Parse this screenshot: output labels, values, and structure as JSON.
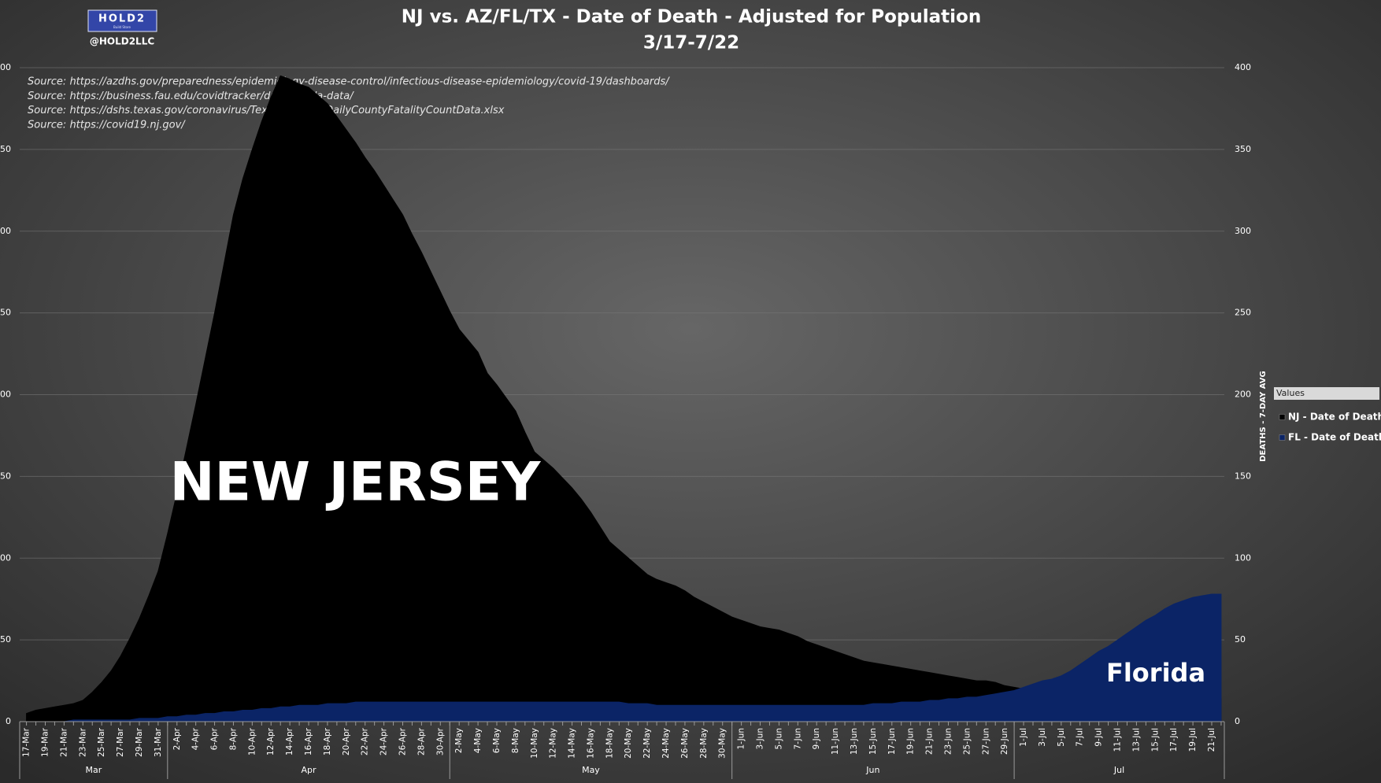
{
  "chart_data": {
    "type": "area",
    "title": "NJ vs. AZ/FL/TX - Date of Death - Adjusted for Population",
    "subtitle": "3/17-7/22",
    "logo": {
      "brand": "HOLD2",
      "tagline": "Build Store",
      "handle": "@HOLD2LLC"
    },
    "sources": [
      "Source: https://azdhs.gov/preparedness/epidemiology-disease-control/infectious-disease-epidemiology/covid-19/dashboards/",
      "Source: https://business.fau.edu/covidtracker/data/florida-data/",
      "Source: https://dshs.texas.gov/coronavirus/TexasCOVID19DailyCountyFatalityCountData.xlsx",
      "Source: https://covid19.nj.gov/"
    ],
    "annotations": [
      "NEW JERSEY",
      "Florida"
    ],
    "y_axis_label": "DEATHS - 7-DAY AVG",
    "legend_title": "Values",
    "legend_position": "right",
    "grid": true,
    "months": [
      "Mar",
      "Apr",
      "May",
      "Jun",
      "Jul"
    ],
    "categories": [
      "17-Mar",
      null,
      "19-Mar",
      null,
      "21-Mar",
      null,
      "23-Mar",
      null,
      "25-Mar",
      null,
      "27-Mar",
      null,
      "29-Mar",
      null,
      "31-Mar",
      null,
      "2-Apr",
      null,
      "4-Apr",
      null,
      "6-Apr",
      null,
      "8-Apr",
      null,
      "10-Apr",
      null,
      "12-Apr",
      null,
      "14-Apr",
      null,
      "16-Apr",
      null,
      "18-Apr",
      null,
      "20-Apr",
      null,
      "22-Apr",
      null,
      "24-Apr",
      null,
      "26-Apr",
      null,
      "28-Apr",
      null,
      "30-Apr",
      null,
      "2-May",
      null,
      "4-May",
      null,
      "6-May",
      null,
      "8-May",
      null,
      "10-May",
      null,
      "12-May",
      null,
      "14-May",
      null,
      "16-May",
      null,
      "18-May",
      null,
      "20-May",
      null,
      "22-May",
      null,
      "24-May",
      null,
      "26-May",
      null,
      "28-May",
      null,
      "30-May",
      null,
      "1-Jun",
      null,
      "3-Jun",
      null,
      "5-Jun",
      null,
      "7-Jun",
      null,
      "9-Jun",
      null,
      "11-Jun",
      null,
      "13-Jun",
      null,
      "15-Jun",
      null,
      "17-Jun",
      null,
      "19-Jun",
      null,
      "21-Jun",
      null,
      "23-Jun",
      null,
      "25-Jun",
      null,
      "27-Jun",
      null,
      "29-Jun",
      null,
      "1-Jul",
      null,
      "3-Jul",
      null,
      "5-Jul",
      null,
      "7-Jul",
      null,
      "9-Jul",
      null,
      "11-Jul",
      null,
      "13-Jul",
      null,
      "15-Jul",
      null,
      "17-Jul",
      null,
      "19-Jul",
      null,
      "21-Jul",
      null
    ],
    "series": [
      {
        "name": "NJ - Date of Death",
        "color": "#000000",
        "values": [
          5,
          7,
          8,
          9,
          10,
          11,
          13,
          18,
          24,
          31,
          40,
          51,
          63,
          77,
          92,
          115,
          140,
          167,
          194,
          222,
          250,
          280,
          310,
          332,
          350,
          367,
          382,
          395,
          393,
          390,
          388,
          383,
          378,
          370,
          362,
          354,
          345,
          337,
          328,
          319,
          310,
          298,
          287,
          275,
          263,
          251,
          240,
          233,
          226,
          213,
          206,
          198,
          190,
          177,
          165,
          160,
          155,
          149,
          143,
          136,
          128,
          119,
          110,
          105,
          100,
          95,
          90,
          87,
          85,
          83,
          80,
          76,
          73,
          70,
          67,
          64,
          62,
          60,
          58,
          57,
          56,
          54,
          52,
          49,
          47,
          45,
          43,
          41,
          39,
          37,
          36,
          35,
          34,
          33,
          32,
          31,
          30,
          29,
          28,
          27,
          26,
          25,
          25,
          24,
          22,
          21,
          20,
          19,
          19,
          18,
          18,
          17,
          17,
          17,
          17,
          16,
          16,
          16,
          16,
          15,
          15,
          15,
          15,
          15,
          15,
          14,
          14,
          14
        ]
      },
      {
        "name": "FL - Date of Death",
        "color": "#0b2466",
        "values": [
          0,
          0,
          0,
          0,
          0,
          1,
          1,
          1,
          1,
          1,
          1,
          1,
          2,
          2,
          2,
          3,
          3,
          4,
          4,
          5,
          5,
          6,
          6,
          7,
          7,
          8,
          8,
          9,
          9,
          10,
          10,
          10,
          11,
          11,
          11,
          12,
          12,
          12,
          12,
          12,
          12,
          12,
          12,
          12,
          12,
          12,
          12,
          12,
          12,
          12,
          12,
          12,
          12,
          12,
          12,
          12,
          12,
          12,
          12,
          12,
          12,
          12,
          12,
          12,
          11,
          11,
          11,
          10,
          10,
          10,
          10,
          10,
          10,
          10,
          10,
          10,
          10,
          10,
          10,
          10,
          10,
          10,
          10,
          10,
          10,
          10,
          10,
          10,
          10,
          10,
          11,
          11,
          11,
          12,
          12,
          12,
          13,
          13,
          14,
          14,
          15,
          15,
          16,
          17,
          18,
          19,
          21,
          23,
          25,
          26,
          28,
          31,
          35,
          39,
          43,
          46,
          50,
          54,
          58,
          62,
          65,
          69,
          72,
          74,
          76,
          77,
          78,
          78
        ]
      }
    ],
    "ylim": [
      0,
      400
    ],
    "yticks": [
      0,
      50,
      100,
      150,
      200,
      250,
      300,
      350,
      400
    ]
  }
}
